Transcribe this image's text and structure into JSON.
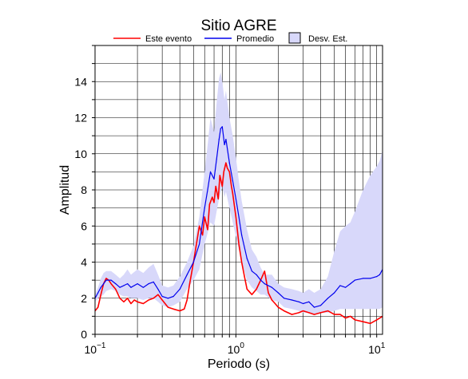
{
  "chart_data": {
    "type": "line",
    "title": "Sitio AGRE",
    "xlabel": "Periodo (s)",
    "ylabel": "Amplitud",
    "xscale": "log",
    "xlim": [
      0.1,
      11
    ],
    "ylim": [
      0,
      16
    ],
    "grid": true,
    "legend_position": "top",
    "x_tick_labels": [
      {
        "x": 0.1,
        "base": "10",
        "exp": "−1"
      },
      {
        "x": 1,
        "base": "10",
        "exp": "0"
      },
      {
        "x": 10,
        "base": "10",
        "exp": "1"
      }
    ],
    "y_ticks": [
      0,
      2,
      4,
      6,
      8,
      10,
      12,
      14
    ],
    "colors": {
      "este_evento": "#ff0000",
      "promedio": "#0000ee",
      "desv_est": "#d8d8fa"
    },
    "series": [
      {
        "name": "Este evento",
        "x": [
          0.1,
          0.105,
          0.11,
          0.115,
          0.12,
          0.125,
          0.13,
          0.14,
          0.15,
          0.16,
          0.17,
          0.18,
          0.19,
          0.2,
          0.22,
          0.24,
          0.26,
          0.28,
          0.3,
          0.33,
          0.36,
          0.4,
          0.43,
          0.45,
          0.47,
          0.5,
          0.53,
          0.55,
          0.58,
          0.6,
          0.63,
          0.65,
          0.68,
          0.7,
          0.72,
          0.75,
          0.77,
          0.8,
          0.82,
          0.85,
          0.87,
          0.9,
          0.93,
          0.95,
          1.0,
          1.05,
          1.1,
          1.15,
          1.2,
          1.3,
          1.4,
          1.5,
          1.6,
          1.7,
          1.8,
          1.9,
          2.0,
          2.2,
          2.5,
          2.8,
          3.0,
          3.3,
          3.6,
          4.0,
          4.5,
          5.0,
          5.5,
          6.0,
          6.5,
          7.0,
          8.0,
          9.0,
          10.0,
          11.0
        ],
        "y": [
          1.3,
          1.5,
          2.2,
          2.8,
          3.1,
          3.0,
          2.8,
          2.5,
          2.0,
          1.8,
          2.0,
          1.7,
          1.9,
          1.8,
          1.7,
          1.9,
          2.0,
          2.2,
          1.9,
          1.5,
          1.4,
          1.3,
          1.4,
          1.9,
          2.8,
          4.0,
          5.2,
          6.0,
          5.5,
          6.5,
          5.8,
          7.2,
          7.6,
          7.3,
          8.2,
          7.5,
          8.8,
          8.2,
          9.0,
          9.5,
          9.2,
          9.0,
          8.2,
          7.8,
          6.5,
          5.0,
          4.0,
          3.2,
          2.5,
          2.2,
          2.5,
          3.0,
          3.5,
          2.3,
          1.9,
          1.7,
          1.5,
          1.3,
          1.1,
          1.2,
          1.3,
          1.2,
          1.1,
          1.2,
          1.3,
          1.1,
          1.1,
          0.9,
          1.0,
          0.8,
          0.7,
          0.6,
          0.8,
          1.0
        ]
      },
      {
        "name": "Promedio",
        "x": [
          0.1,
          0.105,
          0.11,
          0.115,
          0.12,
          0.13,
          0.14,
          0.15,
          0.16,
          0.17,
          0.18,
          0.2,
          0.22,
          0.24,
          0.26,
          0.28,
          0.3,
          0.33,
          0.36,
          0.4,
          0.45,
          0.5,
          0.55,
          0.6,
          0.63,
          0.66,
          0.7,
          0.73,
          0.76,
          0.78,
          0.8,
          0.83,
          0.85,
          0.9,
          0.95,
          1.0,
          1.05,
          1.1,
          1.2,
          1.3,
          1.4,
          1.5,
          1.6,
          1.8,
          2.0,
          2.2,
          2.5,
          2.8,
          3.0,
          3.3,
          3.6,
          4.0,
          4.5,
          5.0,
          5.5,
          6.0,
          6.5,
          7.0,
          8.0,
          9.0,
          10.0,
          10.5,
          11.0
        ],
        "y": [
          2.0,
          2.3,
          2.6,
          2.8,
          3.0,
          3.0,
          2.8,
          2.6,
          2.7,
          2.8,
          2.6,
          2.8,
          2.6,
          2.8,
          2.9,
          2.5,
          2.1,
          2.0,
          2.1,
          2.5,
          3.3,
          4.0,
          5.0,
          7.0,
          8.0,
          9.0,
          8.6,
          9.7,
          10.8,
          11.4,
          11.5,
          10.5,
          10.8,
          9.5,
          8.5,
          7.5,
          6.5,
          5.5,
          4.2,
          3.5,
          3.3,
          3.0,
          2.8,
          2.6,
          2.3,
          2.0,
          1.9,
          1.8,
          1.7,
          1.8,
          1.5,
          1.6,
          2.0,
          2.3,
          2.7,
          2.6,
          2.8,
          3.0,
          3.1,
          3.1,
          3.2,
          3.3,
          3.6
        ]
      }
    ],
    "band": {
      "name": "Desv. Est.",
      "x": [
        0.1,
        0.105,
        0.11,
        0.115,
        0.12,
        0.13,
        0.14,
        0.15,
        0.16,
        0.17,
        0.18,
        0.2,
        0.22,
        0.24,
        0.26,
        0.28,
        0.3,
        0.33,
        0.36,
        0.4,
        0.45,
        0.5,
        0.55,
        0.6,
        0.63,
        0.66,
        0.7,
        0.73,
        0.76,
        0.78,
        0.8,
        0.83,
        0.85,
        0.9,
        0.95,
        1.0,
        1.05,
        1.1,
        1.2,
        1.3,
        1.4,
        1.5,
        1.6,
        1.8,
        2.0,
        2.2,
        2.5,
        2.8,
        3.0,
        3.3,
        3.6,
        4.0,
        4.5,
        5.0,
        5.5,
        6.0,
        6.5,
        7.0,
        8.0,
        9.0,
        10.0,
        10.5,
        11.0
      ],
      "upper": [
        2.2,
        2.6,
        3.1,
        3.4,
        3.5,
        3.5,
        3.3,
        3.1,
        3.3,
        3.6,
        3.3,
        3.6,
        3.4,
        3.7,
        3.9,
        3.3,
        2.7,
        2.6,
        2.7,
        3.2,
        4.0,
        4.9,
        6.5,
        9.0,
        10.5,
        12.0,
        11.2,
        12.8,
        14.2,
        14.5,
        14.0,
        13.0,
        13.5,
        12.0,
        11.0,
        9.8,
        8.5,
        7.4,
        5.8,
        4.7,
        4.3,
        3.7,
        3.3,
        3.3,
        2.8,
        2.6,
        2.5,
        2.4,
        2.3,
        2.5,
        2.3,
        2.5,
        3.2,
        4.6,
        5.7,
        6.0,
        6.2,
        6.8,
        8.0,
        8.8,
        9.3,
        9.6,
        10.2
      ],
      "lower": [
        1.8,
        2.0,
        2.1,
        2.2,
        2.4,
        2.5,
        2.4,
        2.2,
        2.1,
        2.1,
        2.0,
        2.0,
        1.9,
        2.0,
        2.0,
        1.8,
        1.6,
        1.5,
        1.6,
        1.8,
        2.5,
        3.0,
        3.6,
        5.0,
        5.6,
        6.2,
        6.0,
        6.8,
        7.5,
        7.9,
        8.2,
        7.6,
        7.9,
        7.0,
        6.2,
        5.4,
        4.7,
        4.0,
        3.0,
        2.6,
        2.4,
        2.2,
        2.2,
        1.9,
        1.8,
        1.5,
        1.4,
        1.3,
        1.2,
        1.2,
        1.1,
        1.2,
        1.2,
        1.3,
        1.4,
        1.4,
        1.4,
        1.4,
        1.4,
        1.4,
        1.4,
        1.4,
        1.5
      ]
    },
    "legend": [
      {
        "label": "Este evento",
        "kind": "line",
        "color": "#ff0000"
      },
      {
        "label": "Promedio",
        "kind": "line",
        "color": "#0000ee"
      },
      {
        "label": "Desv. Est.",
        "kind": "patch",
        "color": "#d8d8fa"
      }
    ]
  }
}
